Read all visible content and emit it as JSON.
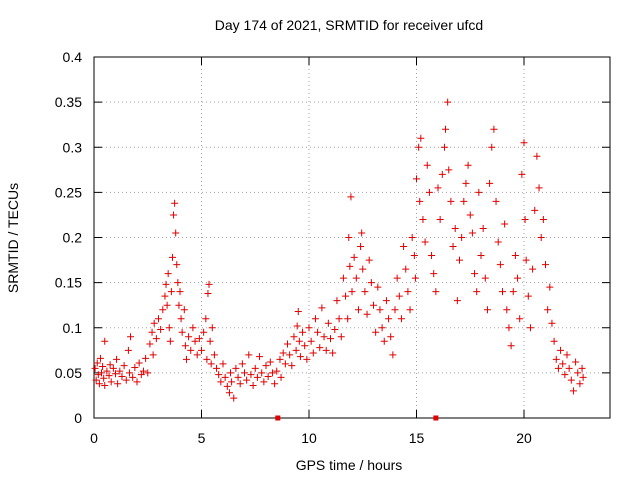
{
  "chart_data": {
    "type": "scatter",
    "title": "Day 174 of 2021, SRMTID for receiver ufcd",
    "xlabel": "GPS time / hours",
    "ylabel": "SRMTID / TECUs",
    "xlim": [
      0,
      24
    ],
    "ylim": [
      0,
      0.4
    ],
    "xticks": [
      0,
      5,
      10,
      15,
      20
    ],
    "xtick_labels": [
      "0",
      "5",
      "10",
      "15",
      "20"
    ],
    "yticks": [
      0,
      0.05,
      0.1,
      0.15,
      0.2,
      0.25,
      0.3,
      0.35,
      0.4
    ],
    "ytick_labels": [
      "0",
      "0.05",
      "0.1",
      "0.15",
      "0.2",
      "0.25",
      "0.3",
      "0.35",
      "0.4"
    ],
    "grid": true,
    "series": [
      {
        "name": "SRMTID",
        "marker": "plus",
        "color": "#e00000",
        "points": [
          [
            0.05,
            0.055
          ],
          [
            0.1,
            0.042
          ],
          [
            0.15,
            0.061
          ],
          [
            0.2,
            0.048
          ],
          [
            0.25,
            0.038
          ],
          [
            0.3,
            0.066
          ],
          [
            0.35,
            0.05
          ],
          [
            0.4,
            0.057
          ],
          [
            0.45,
            0.044
          ],
          [
            0.5,
            0.085
          ],
          [
            0.5,
            0.036
          ],
          [
            0.6,
            0.052
          ],
          [
            0.7,
            0.047
          ],
          [
            0.75,
            0.059
          ],
          [
            0.8,
            0.04
          ],
          [
            0.9,
            0.055
          ],
          [
            1.0,
            0.049
          ],
          [
            1.05,
            0.065
          ],
          [
            1.1,
            0.038
          ],
          [
            1.2,
            0.052
          ],
          [
            1.3,
            0.046
          ],
          [
            1.4,
            0.058
          ],
          [
            1.5,
            0.042
          ],
          [
            1.6,
            0.075
          ],
          [
            1.65,
            0.05
          ],
          [
            1.7,
            0.09
          ],
          [
            1.8,
            0.045
          ],
          [
            1.9,
            0.056
          ],
          [
            2.0,
            0.04
          ],
          [
            2.1,
            0.061
          ],
          [
            2.2,
            0.048
          ],
          [
            2.3,
            0.052
          ],
          [
            2.4,
            0.066
          ],
          [
            2.5,
            0.05
          ],
          [
            2.6,
            0.082
          ],
          [
            2.7,
            0.095
          ],
          [
            2.75,
            0.07
          ],
          [
            2.8,
            0.105
          ],
          [
            2.9,
            0.088
          ],
          [
            3.0,
            0.11
          ],
          [
            3.1,
            0.098
          ],
          [
            3.2,
            0.12
          ],
          [
            3.3,
            0.135
          ],
          [
            3.35,
            0.148
          ],
          [
            3.4,
            0.125
          ],
          [
            3.45,
            0.16
          ],
          [
            3.5,
            0.1
          ],
          [
            3.55,
            0.085
          ],
          [
            3.6,
            0.14
          ],
          [
            3.65,
            0.178
          ],
          [
            3.7,
            0.225
          ],
          [
            3.75,
            0.238
          ],
          [
            3.8,
            0.205
          ],
          [
            3.85,
            0.17
          ],
          [
            3.9,
            0.15
          ],
          [
            3.95,
            0.125
          ],
          [
            4.0,
            0.14
          ],
          [
            4.05,
            0.11
          ],
          [
            4.1,
            0.095
          ],
          [
            4.2,
            0.12
          ],
          [
            4.25,
            0.08
          ],
          [
            4.3,
            0.065
          ],
          [
            4.4,
            0.09
          ],
          [
            4.5,
            0.075
          ],
          [
            4.6,
            0.1
          ],
          [
            4.7,
            0.085
          ],
          [
            4.8,
            0.07
          ],
          [
            4.9,
            0.088
          ],
          [
            5.0,
            0.075
          ],
          [
            5.1,
            0.095
          ],
          [
            5.2,
            0.11
          ],
          [
            5.25,
            0.065
          ],
          [
            5.3,
            0.138
          ],
          [
            5.35,
            0.148
          ],
          [
            5.4,
            0.085
          ],
          [
            5.45,
            0.06
          ],
          [
            5.5,
            0.1
          ],
          [
            5.6,
            0.07
          ],
          [
            5.7,
            0.055
          ],
          [
            5.8,
            0.048
          ],
          [
            5.9,
            0.04
          ],
          [
            6.0,
            0.06
          ],
          [
            6.1,
            0.045
          ],
          [
            6.2,
            0.035
          ],
          [
            6.3,
            0.028
          ],
          [
            6.35,
            0.05
          ],
          [
            6.4,
            0.04
          ],
          [
            6.5,
            0.022
          ],
          [
            6.6,
            0.055
          ],
          [
            6.7,
            0.045
          ],
          [
            6.8,
            0.038
          ],
          [
            6.9,
            0.06
          ],
          [
            7.0,
            0.05
          ],
          [
            7.1,
            0.042
          ],
          [
            7.2,
            0.07
          ],
          [
            7.3,
            0.048
          ],
          [
            7.4,
            0.036
          ],
          [
            7.5,
            0.055
          ],
          [
            7.6,
            0.045
          ],
          [
            7.7,
            0.068
          ],
          [
            7.8,
            0.05
          ],
          [
            7.9,
            0.04
          ],
          [
            8.0,
            0.058
          ],
          [
            8.1,
            0.046
          ],
          [
            8.2,
            0.062
          ],
          [
            8.3,
            0.05
          ],
          [
            8.4,
            0.038
          ],
          [
            8.5,
            0.052
          ],
          [
            8.65,
            0.065
          ],
          [
            8.7,
            0.045
          ],
          [
            8.8,
            0.072
          ],
          [
            8.9,
            0.06
          ],
          [
            9.0,
            0.082
          ],
          [
            9.1,
            0.07
          ],
          [
            9.2,
            0.058
          ],
          [
            9.3,
            0.09
          ],
          [
            9.4,
            0.075
          ],
          [
            9.45,
            0.102
          ],
          [
            9.5,
            0.118
          ],
          [
            9.55,
            0.085
          ],
          [
            9.6,
            0.068
          ],
          [
            9.7,
            0.095
          ],
          [
            9.8,
            0.08
          ],
          [
            9.9,
            0.065
          ],
          [
            10.0,
            0.1
          ],
          [
            10.1,
            0.085
          ],
          [
            10.2,
            0.072
          ],
          [
            10.3,
            0.11
          ],
          [
            10.4,
            0.095
          ],
          [
            10.5,
            0.078
          ],
          [
            10.6,
            0.122
          ],
          [
            10.7,
            0.09
          ],
          [
            10.8,
            0.075
          ],
          [
            10.9,
            0.105
          ],
          [
            11.0,
            0.088
          ],
          [
            11.1,
            0.072
          ],
          [
            11.2,
            0.098
          ],
          [
            11.3,
            0.13
          ],
          [
            11.4,
            0.11
          ],
          [
            11.5,
            0.09
          ],
          [
            11.6,
            0.155
          ],
          [
            11.7,
            0.135
          ],
          [
            11.8,
            0.11
          ],
          [
            11.85,
            0.2
          ],
          [
            11.9,
            0.168
          ],
          [
            11.95,
            0.245
          ],
          [
            12.0,
            0.14
          ],
          [
            12.1,
            0.178
          ],
          [
            12.2,
            0.155
          ],
          [
            12.3,
            0.12
          ],
          [
            12.4,
            0.19
          ],
          [
            12.45,
            0.205
          ],
          [
            12.5,
            0.165
          ],
          [
            12.6,
            0.14
          ],
          [
            12.7,
            0.115
          ],
          [
            12.8,
            0.175
          ],
          [
            12.9,
            0.15
          ],
          [
            13.0,
            0.125
          ],
          [
            13.1,
            0.095
          ],
          [
            13.2,
            0.145
          ],
          [
            13.3,
            0.12
          ],
          [
            13.4,
            0.1
          ],
          [
            13.5,
            0.085
          ],
          [
            13.6,
            0.13
          ],
          [
            13.7,
            0.11
          ],
          [
            13.8,
            0.09
          ],
          [
            13.9,
            0.07
          ],
          [
            14.0,
            0.12
          ],
          [
            14.1,
            0.155
          ],
          [
            14.2,
            0.135
          ],
          [
            14.3,
            0.11
          ],
          [
            14.4,
            0.19
          ],
          [
            14.5,
            0.165
          ],
          [
            14.6,
            0.14
          ],
          [
            14.7,
            0.12
          ],
          [
            14.8,
            0.2
          ],
          [
            14.9,
            0.18
          ],
          [
            14.95,
            0.155
          ],
          [
            15.0,
            0.265
          ],
          [
            15.1,
            0.3
          ],
          [
            15.15,
            0.24
          ],
          [
            15.2,
            0.31
          ],
          [
            15.3,
            0.22
          ],
          [
            15.4,
            0.195
          ],
          [
            15.5,
            0.28
          ],
          [
            15.6,
            0.25
          ],
          [
            15.7,
            0.18
          ],
          [
            15.8,
            0.16
          ],
          [
            15.9,
            0.14
          ],
          [
            16.0,
            0.255
          ],
          [
            16.1,
            0.22
          ],
          [
            16.2,
            0.27
          ],
          [
            16.3,
            0.3
          ],
          [
            16.35,
            0.32
          ],
          [
            16.45,
            0.35
          ],
          [
            16.5,
            0.275
          ],
          [
            16.6,
            0.24
          ],
          [
            16.7,
            0.19
          ],
          [
            16.8,
            0.21
          ],
          [
            16.9,
            0.13
          ],
          [
            17.0,
            0.175
          ],
          [
            17.1,
            0.2
          ],
          [
            17.2,
            0.24
          ],
          [
            17.3,
            0.26
          ],
          [
            17.4,
            0.28
          ],
          [
            17.5,
            0.225
          ],
          [
            17.6,
            0.205
          ],
          [
            17.7,
            0.16
          ],
          [
            17.8,
            0.14
          ],
          [
            17.9,
            0.25
          ],
          [
            18.0,
            0.18
          ],
          [
            18.1,
            0.21
          ],
          [
            18.2,
            0.155
          ],
          [
            18.3,
            0.12
          ],
          [
            18.4,
            0.26
          ],
          [
            18.5,
            0.3
          ],
          [
            18.6,
            0.32
          ],
          [
            18.7,
            0.24
          ],
          [
            18.8,
            0.195
          ],
          [
            18.9,
            0.17
          ],
          [
            19.0,
            0.14
          ],
          [
            19.1,
            0.215
          ],
          [
            19.2,
            0.12
          ],
          [
            19.3,
            0.1
          ],
          [
            19.4,
            0.08
          ],
          [
            19.5,
            0.14
          ],
          [
            19.6,
            0.18
          ],
          [
            19.7,
            0.155
          ],
          [
            19.8,
            0.11
          ],
          [
            19.9,
            0.27
          ],
          [
            20.0,
            0.305
          ],
          [
            20.05,
            0.22
          ],
          [
            20.1,
            0.175
          ],
          [
            20.2,
            0.135
          ],
          [
            20.3,
            0.1
          ],
          [
            20.4,
            0.165
          ],
          [
            20.5,
            0.23
          ],
          [
            20.6,
            0.29
          ],
          [
            20.7,
            0.255
          ],
          [
            20.8,
            0.2
          ],
          [
            20.9,
            0.22
          ],
          [
            21.0,
            0.17
          ],
          [
            21.1,
            0.12
          ],
          [
            21.2,
            0.145
          ],
          [
            21.3,
            0.105
          ],
          [
            21.4,
            0.085
          ],
          [
            21.5,
            0.065
          ],
          [
            21.6,
            0.055
          ],
          [
            21.7,
            0.075
          ],
          [
            21.8,
            0.06
          ],
          [
            21.9,
            0.048
          ],
          [
            22.0,
            0.07
          ],
          [
            22.1,
            0.055
          ],
          [
            22.2,
            0.042
          ],
          [
            22.3,
            0.03
          ],
          [
            22.4,
            0.062
          ],
          [
            22.5,
            0.05
          ],
          [
            22.6,
            0.038
          ],
          [
            22.7,
            0.055
          ],
          [
            22.75,
            0.045
          ]
        ]
      }
    ],
    "gap_markers": [
      8.55,
      15.9
    ]
  }
}
